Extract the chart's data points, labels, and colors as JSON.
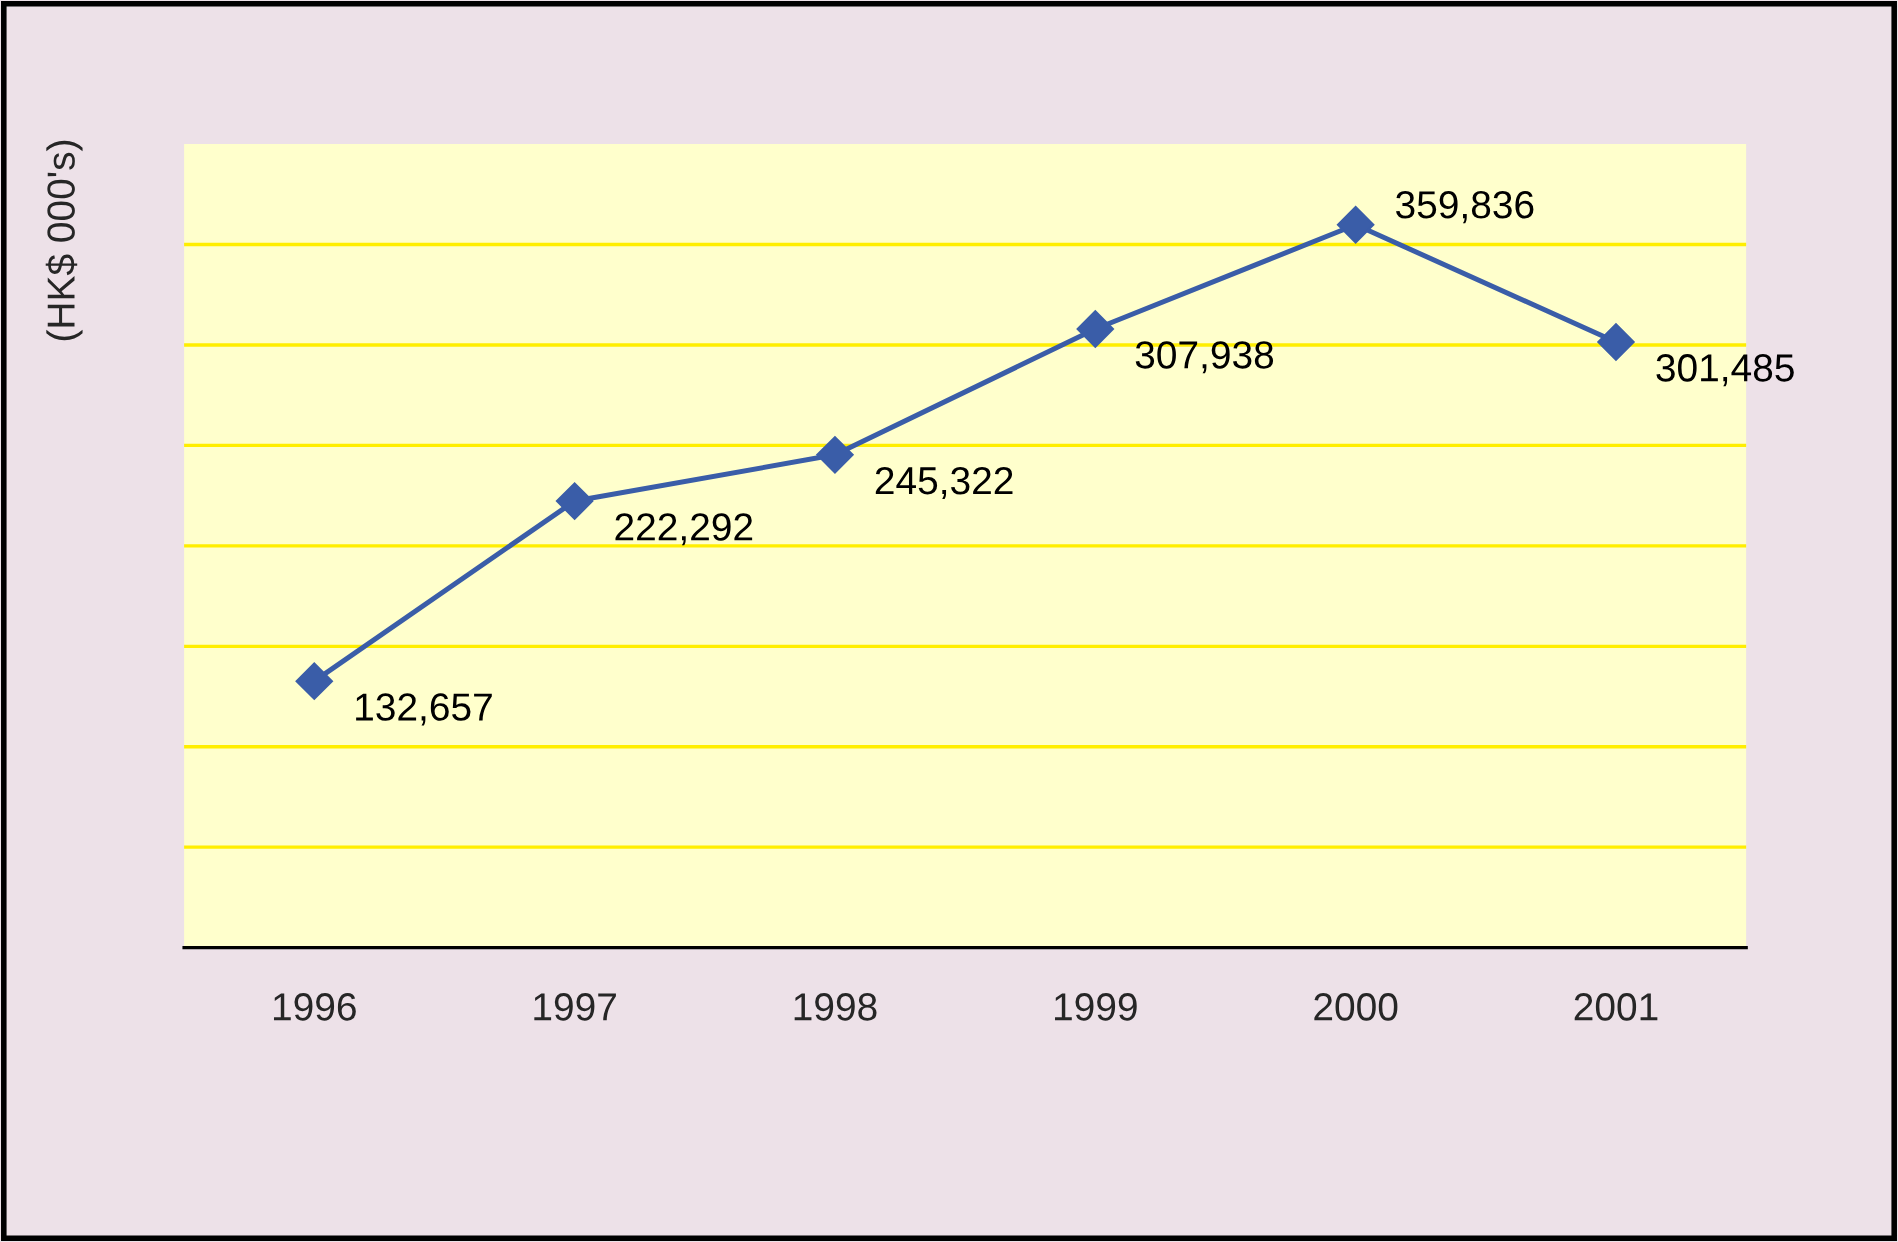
{
  "chart_data": {
    "type": "line",
    "ylabel": "(HK$ 000's)",
    "categories": [
      "1996",
      "1997",
      "1998",
      "1999",
      "2000",
      "2001"
    ],
    "series": [
      {
        "color": "#3a5da8",
        "values": [
          132657,
          222292,
          245322,
          307938,
          359836,
          301485
        ],
        "value_labels": [
          "132,657",
          "222,292",
          "245,322",
          "307,938",
          "359,836",
          "301,485"
        ]
      }
    ],
    "marker": "diamond",
    "line_style": "solid",
    "ylim": [
      0,
      400000
    ],
    "yticks": [
      {
        "value": 50000,
        "label": null
      },
      {
        "value": 100000,
        "label": null
      },
      {
        "value": 150000,
        "label": null
      },
      {
        "value": 200000,
        "label": null
      },
      {
        "value": 250000,
        "label": null
      },
      {
        "value": 300000,
        "label": null
      },
      {
        "value": 350000,
        "label": null
      }
    ],
    "grid": "y",
    "tick_labels": "x"
  }
}
